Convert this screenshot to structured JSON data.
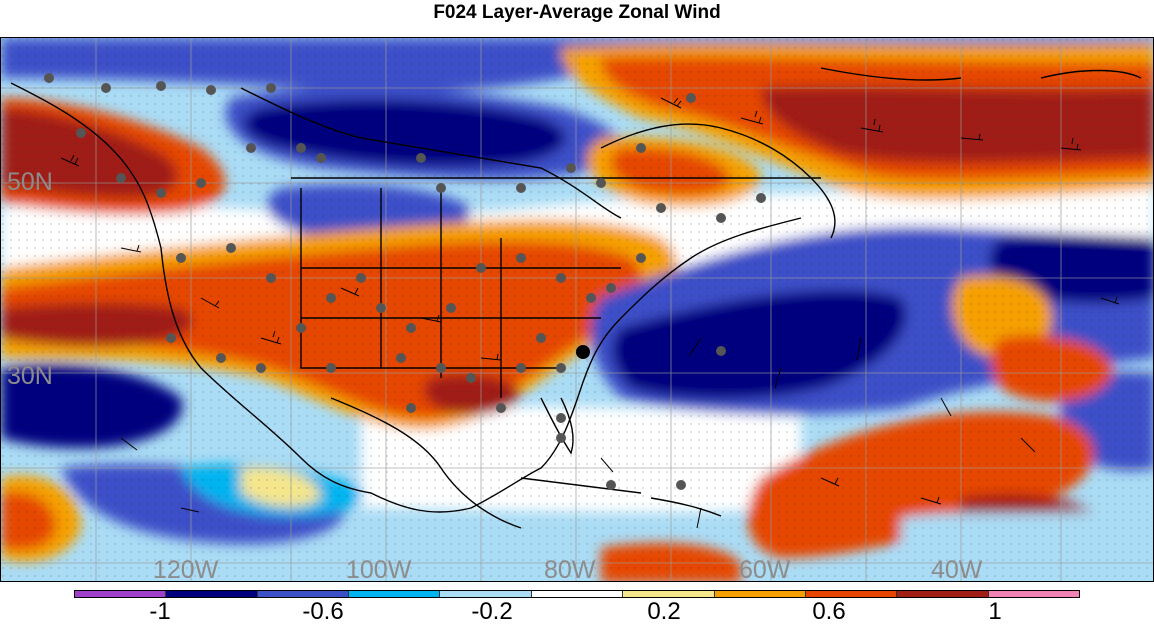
{
  "title": "F024 Layer-Average Zonal Wind",
  "map": {
    "lat_labels": [
      "50N",
      "30N"
    ],
    "lon_labels": [
      "120W",
      "100W",
      "80W",
      "60W",
      "40W"
    ]
  },
  "colorbar": {
    "colors": [
      "#a040c8",
      "#00007f",
      "#3c50c8",
      "#00b4f0",
      "#aadcf5",
      "#ffffff",
      "#f5e68c",
      "#f5a000",
      "#e64600",
      "#a01e14",
      "#f082b4"
    ],
    "labels": [
      "-1",
      "-0.6",
      "-0.2",
      "0.2",
      "0.6",
      "1"
    ]
  }
}
